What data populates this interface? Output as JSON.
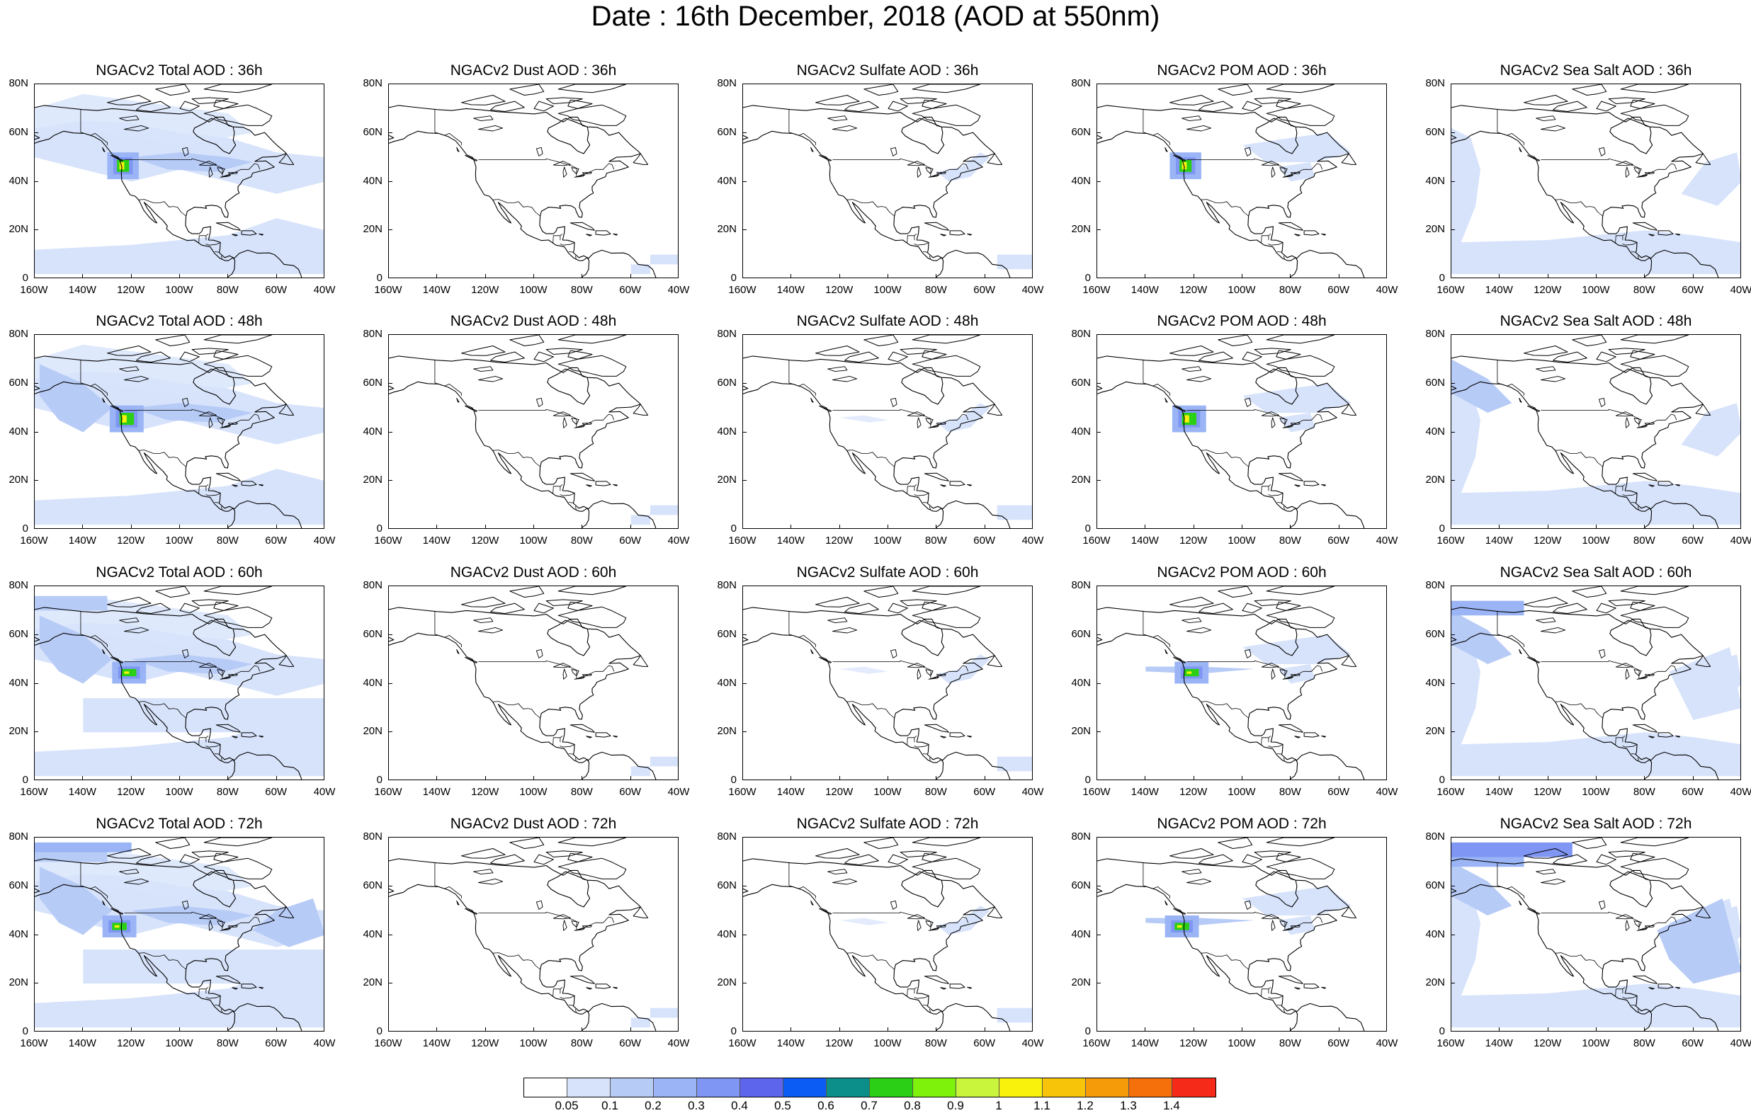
{
  "title": "Date : 16th December, 2018 (AOD at 550nm)",
  "columns": [
    "Total",
    "Dust",
    "Sulfate",
    "POM",
    "Sea Salt"
  ],
  "rows": [
    {
      "hour": "36h",
      "titles": [
        "NGACv2 Total AOD : 36h",
        "NGACv2 Dust AOD : 36h",
        "NGACv2 Sulfate AOD : 36h",
        "NGACv2 POM AOD : 36h",
        "NGACv2 Sea Salt AOD : 36h"
      ]
    },
    {
      "hour": "48h",
      "titles": [
        "NGACv2 Total AOD : 48h",
        "NGACv2 Dust AOD : 48h",
        "NGACv2 Sulfate AOD : 48h",
        "NGACv2 POM AOD : 48h",
        "NGACv2 Sea Salt AOD : 48h"
      ]
    },
    {
      "hour": "60h",
      "titles": [
        "NGACv2 Total AOD : 60h",
        "NGACv2 Dust AOD : 60h",
        "NGACv2 Sulfate AOD : 60h",
        "NGACv2 POM AOD : 60h",
        "NGACv2 Sea Salt AOD : 60h"
      ]
    },
    {
      "hour": "72h",
      "titles": [
        "NGACv2 Total AOD : 72h",
        "NGACv2 Dust AOD : 72h",
        "NGACv2 Sulfate AOD : 72h",
        "NGACv2 POM AOD : 72h",
        "NGACv2 Sea Salt  AOD : 72h"
      ]
    }
  ],
  "lat_ticks": [
    "80N",
    "60N",
    "40N",
    "20N",
    "0"
  ],
  "lon_ticks": [
    "160W",
    "140W",
    "120W",
    "100W",
    "80W",
    "60W",
    "40W"
  ],
  "map_extent": {
    "lon": [
      -160,
      -40
    ],
    "lat": [
      0,
      80
    ]
  },
  "colorbar": {
    "labels": [
      "0.05",
      "0.1",
      "0.2",
      "0.3",
      "0.4",
      "0.5",
      "0.6",
      "0.7",
      "0.8",
      "0.9",
      "1",
      "1.1",
      "1.2",
      "1.3",
      "1.4"
    ],
    "colors": [
      "#ffffff",
      "#d7e3fb",
      "#b7cbf7",
      "#9ab4f5",
      "#7f96f4",
      "#5d65ec",
      "#0b5cf5",
      "#0c8f8a",
      "#2bcf15",
      "#7ef20a",
      "#c9f53c",
      "#f8f20c",
      "#f7c40a",
      "#f59b0a",
      "#f56f0a",
      "#f52a18"
    ]
  }
}
